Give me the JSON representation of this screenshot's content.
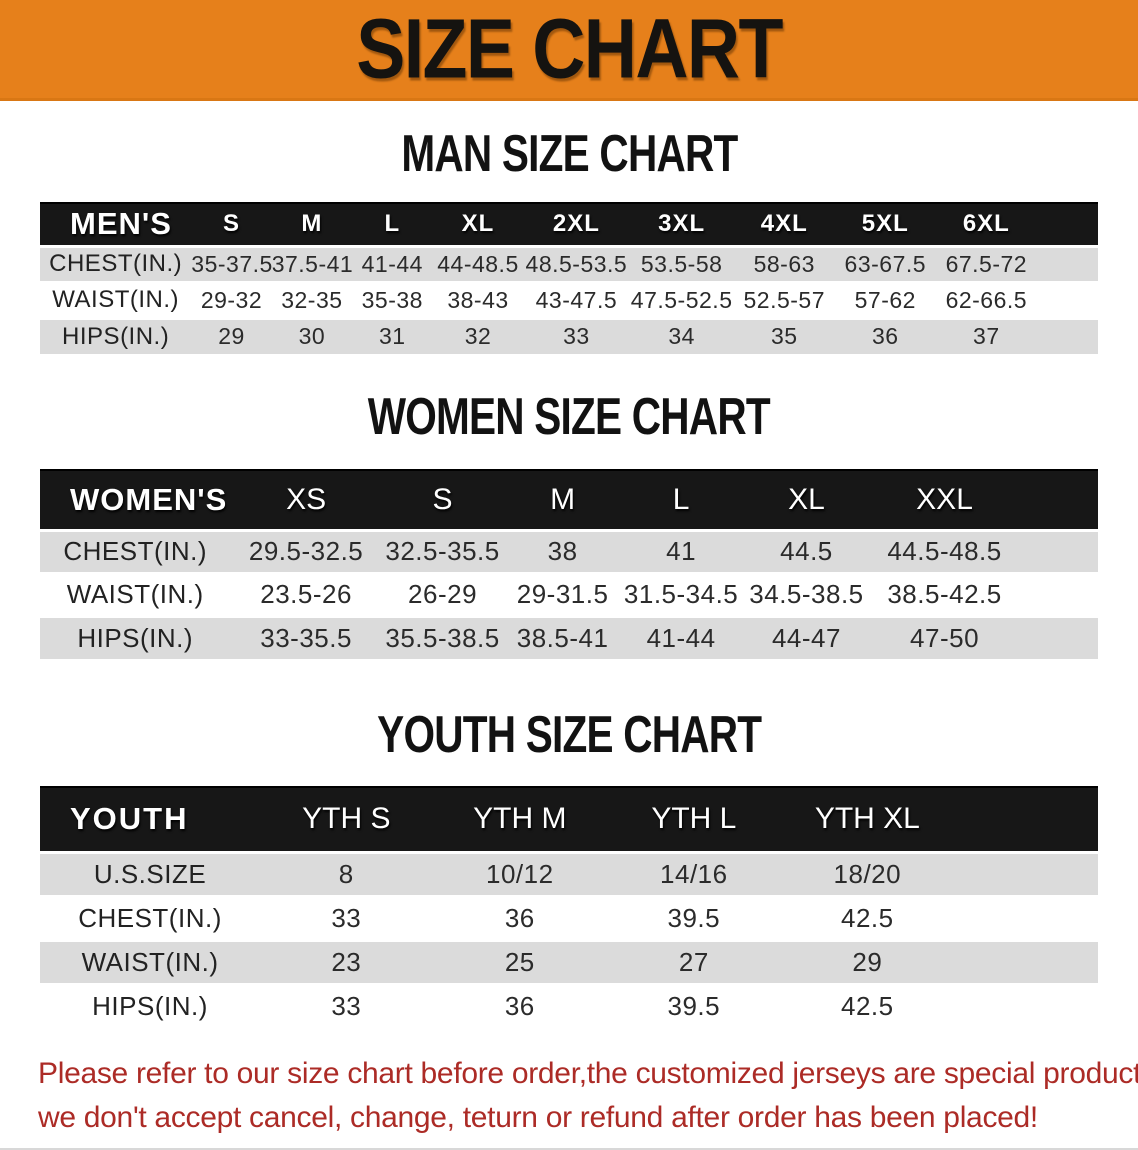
{
  "banner": {
    "title": "SIZE CHART"
  },
  "colors": {
    "banner_background": "#e6801b",
    "table_header_background": "#171717",
    "row_stripe_gray": "#dbdbdb",
    "disclaimer_red": "#ac2b26"
  },
  "sections": [
    {
      "id": "men",
      "heading": "MAN SIZE CHART",
      "table": {
        "label": "MEN'S",
        "sizes": [
          "S",
          "M",
          "L",
          "XL",
          "2XL",
          "3XL",
          "4XL",
          "5XL",
          "6XL"
        ],
        "rows": [
          {
            "label": "CHEST(IN.)",
            "values": [
              "35-37.5",
              "37.5-41",
              "41-44",
              "44-48.5",
              "48.5-53.5",
              "53.5-58",
              "58-63",
              "63-67.5",
              "67.5-72"
            ]
          },
          {
            "label": "WAIST(IN.)",
            "values": [
              "29-32",
              "32-35",
              "35-38",
              "38-43",
              "43-47.5",
              "47.5-52.5",
              "52.5-57",
              "57-62",
              "62-66.5"
            ]
          },
          {
            "label": "HIPS(IN.)",
            "values": [
              "29",
              "30",
              "31",
              "32",
              "33",
              "34",
              "35",
              "36",
              "37"
            ]
          }
        ]
      }
    },
    {
      "id": "women",
      "heading": "WOMEN SIZE CHART",
      "table": {
        "label": "WOMEN'S",
        "sizes": [
          "XS",
          "S",
          "M",
          "L",
          "XL",
          "XXL"
        ],
        "rows": [
          {
            "label": "CHEST(IN.)",
            "values": [
              "29.5-32.5",
              "32.5-35.5",
              "38",
              "41",
              "44.5",
              "44.5-48.5"
            ]
          },
          {
            "label": "WAIST(IN.)",
            "values": [
              "23.5-26",
              "26-29",
              "29-31.5",
              "31.5-34.5",
              "34.5-38.5",
              "38.5-42.5"
            ]
          },
          {
            "label": "HIPS(IN.)",
            "values": [
              "33-35.5",
              "35.5-38.5",
              "38.5-41",
              "41-44",
              "44-47",
              "47-50"
            ]
          }
        ]
      }
    },
    {
      "id": "youth",
      "heading": "YOUTH SIZE CHART",
      "table": {
        "label": "YOUTH",
        "sizes": [
          "YTH S",
          "YTH M",
          "YTH L",
          "YTH XL"
        ],
        "rows": [
          {
            "label": "U.S.SIZE",
            "values": [
              "8",
              "10/12",
              "14/16",
              "18/20"
            ]
          },
          {
            "label": "CHEST(IN.)",
            "values": [
              "33",
              "36",
              "39.5",
              "42.5"
            ]
          },
          {
            "label": "WAIST(IN.)",
            "values": [
              "23",
              "25",
              "27",
              "29"
            ]
          },
          {
            "label": "HIPS(IN.)",
            "values": [
              "33",
              "36",
              "39.5",
              "42.5"
            ]
          }
        ]
      }
    }
  ],
  "disclaimer": {
    "lines": [
      "Please refer to our size chart before order,the customized jerseys are special products,",
      "we don't accept cancel, change, teturn or refund after order has been placed!"
    ]
  }
}
